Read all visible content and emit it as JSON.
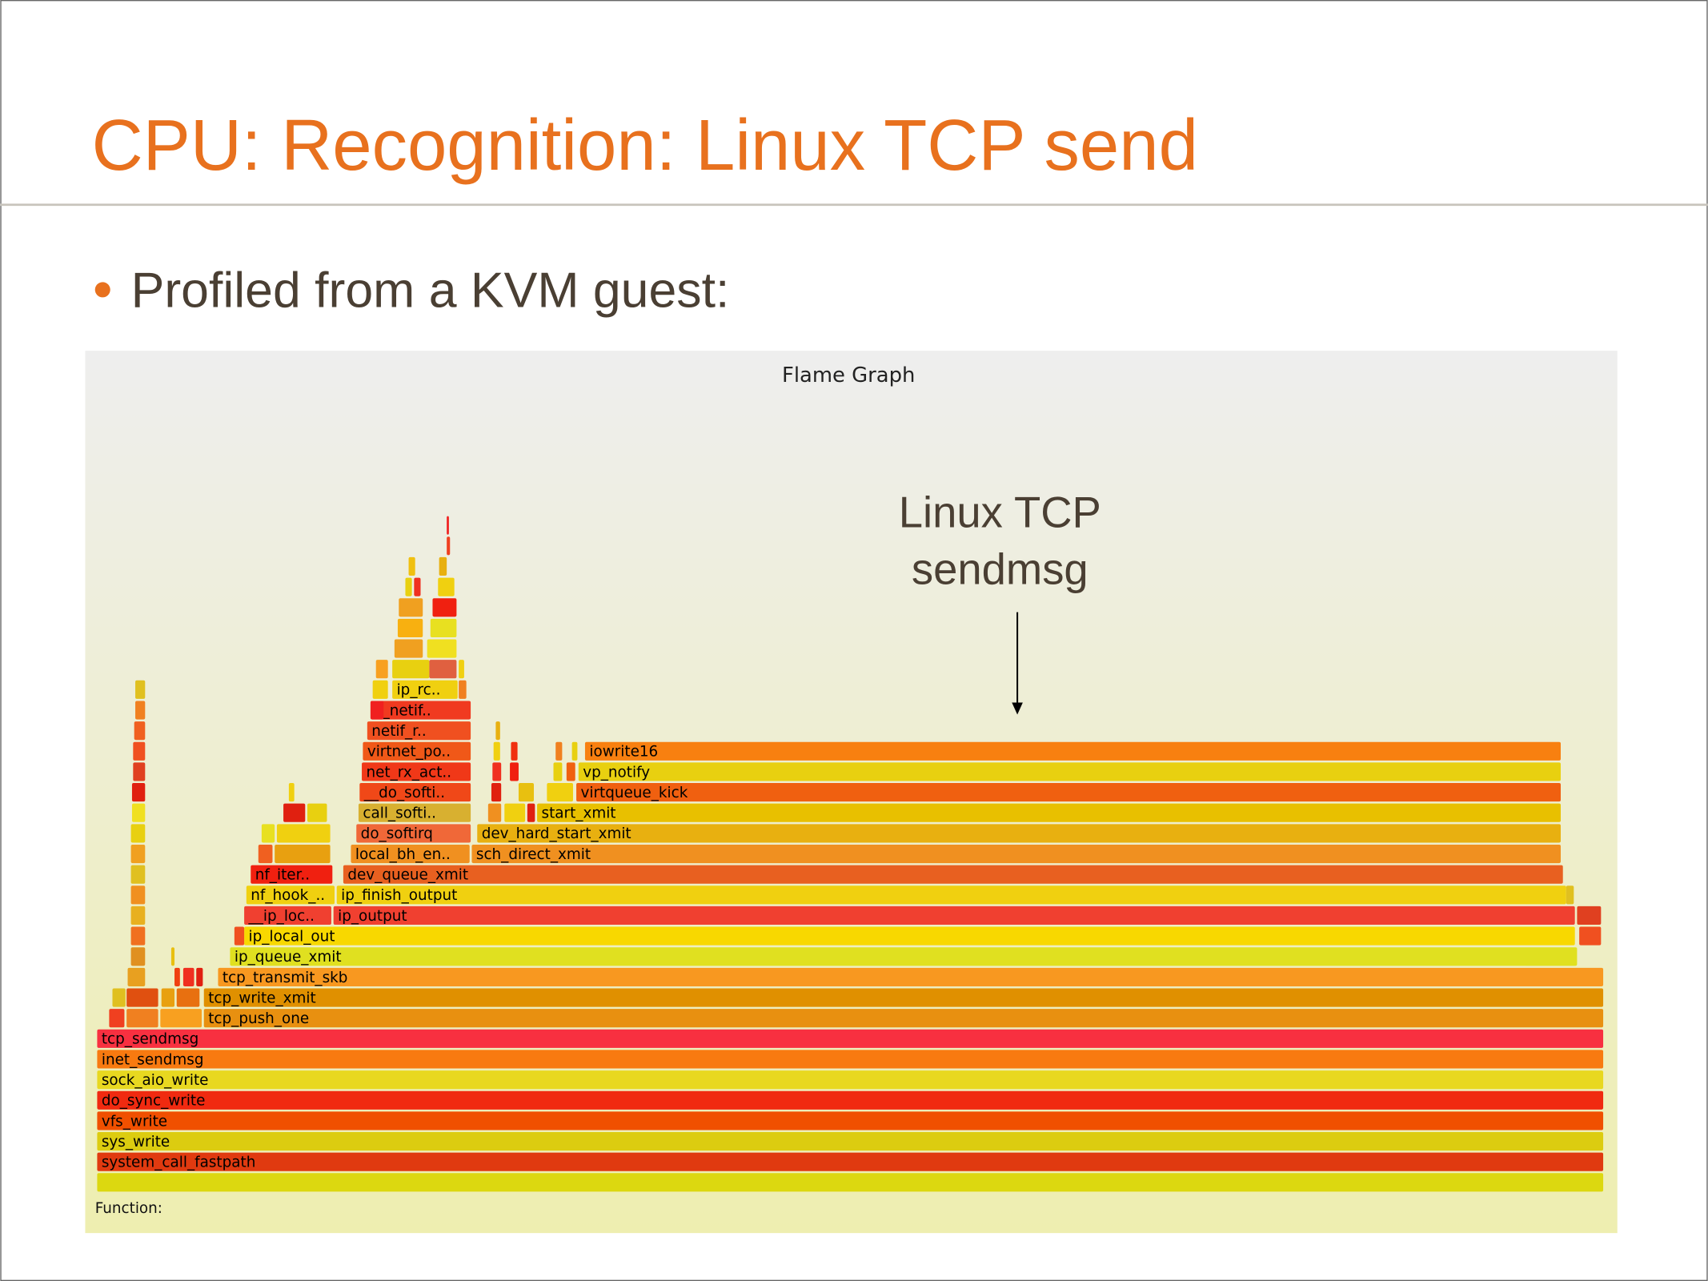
{
  "slide": {
    "title": "CPU: Recognition: Linux TCP send",
    "bullet": "Profiled from a KVM guest:",
    "flame_graph": {
      "title": "Flame Graph",
      "footer": "Function:",
      "annotation": [
        "Linux TCP",
        "sendmsg"
      ],
      "frames": [
        {
          "label": "system_call_fastpath"
        },
        {
          "label": "sys_write"
        },
        {
          "label": "vfs_write"
        },
        {
          "label": "do_sync_write"
        },
        {
          "label": "sock_aio_write"
        },
        {
          "label": "inet_sendmsg"
        },
        {
          "label": "tcp_sendmsg"
        },
        {
          "label": "tcp_push_one"
        },
        {
          "label": "tcp_write_xmit"
        },
        {
          "label": "tcp_transmit_skb"
        },
        {
          "label": "ip_queue_xmit"
        },
        {
          "label": "ip_local_out"
        },
        {
          "label": "ip_output"
        },
        {
          "label": "__ip_loc.."
        },
        {
          "label": "ip_finish_output"
        },
        {
          "label": "nf_hook_.."
        },
        {
          "label": "dev_queue_xmit"
        },
        {
          "label": "nf_iter.."
        },
        {
          "label": "sch_direct_xmit"
        },
        {
          "label": "local_bh_en.."
        },
        {
          "label": "dev_hard_start_xmit"
        },
        {
          "label": "do_softirq"
        },
        {
          "label": "start_xmit"
        },
        {
          "label": "call_softi.."
        },
        {
          "label": "virtqueue_kick"
        },
        {
          "label": "__do_softi.."
        },
        {
          "label": "vp_notify"
        },
        {
          "label": "net_rx_act.."
        },
        {
          "label": "iowrite16"
        },
        {
          "label": "virtnet_po.."
        },
        {
          "label": "netif_r.."
        },
        {
          "label": "__netif.."
        },
        {
          "label": "ip_rc.."
        }
      ]
    }
  }
}
